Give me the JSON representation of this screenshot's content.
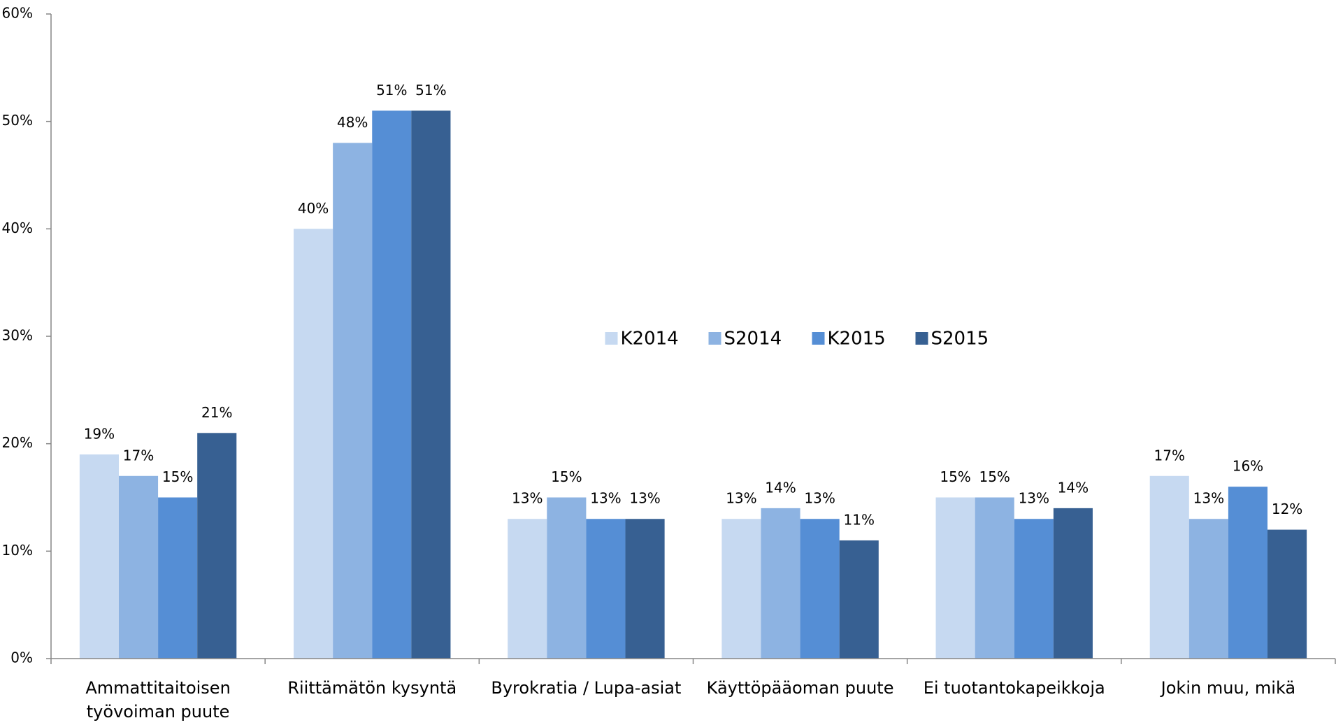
{
  "chart_data": {
    "type": "bar",
    "categories": [
      "Ammattitaitoisen työvoiman puute",
      "Riittämätön kysyntä",
      "Byrokratia / Lupa-asiat",
      "Käyttöpääoman puute",
      "Ei tuotantokapeikkoja",
      "Jokin muu, mikä"
    ],
    "series": [
      {
        "name": "K2014",
        "color": "#c6d9f1",
        "values": [
          19,
          40,
          13,
          13,
          15,
          17
        ],
        "value_labels": [
          "19%",
          "40%",
          "13%",
          "13%",
          "15%",
          "17%"
        ]
      },
      {
        "name": "S2014",
        "color": "#8db3e2",
        "values": [
          17,
          48,
          15,
          14,
          15,
          13
        ],
        "value_labels": [
          "17%",
          "48%",
          "15%",
          "14%",
          "15%",
          "13%"
        ]
      },
      {
        "name": "K2015",
        "color": "#558ed5",
        "values": [
          15,
          51,
          13,
          13,
          13,
          16
        ],
        "value_labels": [
          "15%",
          "51%",
          "13%",
          "13%",
          "13%",
          "16%"
        ]
      },
      {
        "name": "S2015",
        "color": "#376092",
        "values": [
          21,
          51,
          13,
          11,
          14,
          12
        ],
        "value_labels": [
          "21%",
          "51%",
          "13%",
          "11%",
          "14%",
          "12%"
        ]
      }
    ],
    "ylim": [
      0,
      60
    ],
    "yticks": [
      {
        "value": 0,
        "label": "0%"
      },
      {
        "value": 10,
        "label": "10%"
      },
      {
        "value": 20,
        "label": "20%"
      },
      {
        "value": 30,
        "label": "30%"
      },
      {
        "value": 40,
        "label": "40%"
      },
      {
        "value": 50,
        "label": "50%"
      },
      {
        "value": 60,
        "label": "60%"
      }
    ],
    "legend": "center"
  }
}
